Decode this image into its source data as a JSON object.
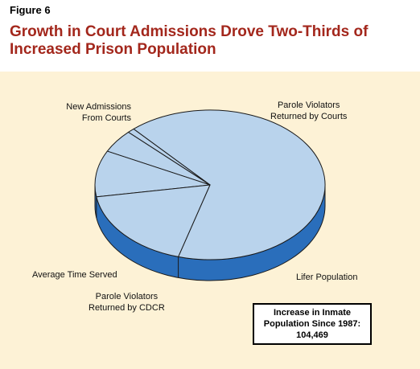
{
  "figure_label": "Figure 6",
  "title_lines": [
    "Growth in Court Admissions Drove Two-Thirds of",
    "Increased Prison Population"
  ],
  "colors": {
    "title": "#a3271c",
    "panel_bg": "#fdf2d6",
    "pie_top": "#b9d3ec",
    "pie_side": "#2a6ebb",
    "outline": "#1a1a1a"
  },
  "chart_data": {
    "type": "pie",
    "title": "Growth in Court Admissions Drove Two-Thirds of Increased Prison Population",
    "slices": [
      {
        "label": "New Admissions From Courts",
        "label_lines": [
          "New Admissions",
          "From Courts"
        ],
        "value": 66
      },
      {
        "label": "Average Time Served",
        "label_lines": [
          "Average Time Served"
        ],
        "value": 1
      },
      {
        "label": "Parole Violators Returned by CDCR",
        "label_lines": [
          "Parole Violators",
          "Returned by CDCR"
        ],
        "value": 5
      },
      {
        "label": "Lifer Population",
        "label_lines": [
          "Lifer Population"
        ],
        "value": 10
      },
      {
        "label": "Parole Violators Returned by Courts",
        "label_lines": [
          "Parole Violators",
          "Returned by Courts"
        ],
        "value": 18
      }
    ],
    "unit": "percent (approx.)"
  },
  "stat_box": {
    "lines": [
      "Increase in Inmate",
      "Population Since 1987:",
      "104,469"
    ]
  }
}
